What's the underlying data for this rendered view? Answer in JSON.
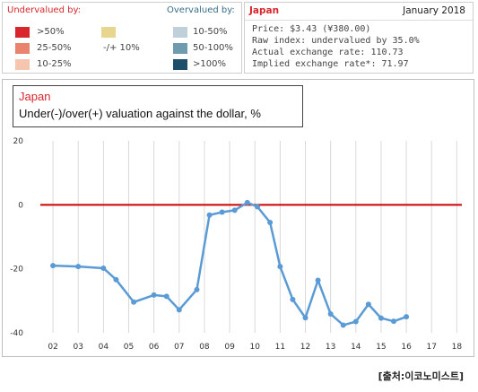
{
  "legend": {
    "under_header": "Undervalued by:",
    "over_header": "Overvalued by:",
    "mid_label": "-/+ 10%",
    "mid_color": "#e8d68f",
    "under_items": [
      {
        "label": ">50%",
        "color": "#d8262c"
      },
      {
        "label": "25-50%",
        "color": "#e9836e"
      },
      {
        "label": "10-25%",
        "color": "#f6c5ae"
      }
    ],
    "over_items": [
      {
        "label": "10-50%",
        "color": "#bfd0db"
      },
      {
        "label": "50-100%",
        "color": "#6e9cae"
      },
      {
        "label": ">100%",
        "color": "#1f4e6b"
      }
    ]
  },
  "info": {
    "country": "Japan",
    "date": "January 2018",
    "price": "Price: $3.43 (¥380.00)",
    "raw_index": "Raw index: undervalued by 35.0%",
    "actual_rate": "Actual exchange rate: 110.73",
    "implied_rate": "Implied exchange rate*: 71.97"
  },
  "source": "[출처:이코노미스트]",
  "chart_data": {
    "type": "line",
    "title": "Japan",
    "subtitle": "Under(-)/over(+) valuation against the dollar, %",
    "ylim": [
      -40,
      20
    ],
    "yticks": [
      20,
      0,
      -20,
      -40
    ],
    "xlim": [
      2001.5,
      2018.2
    ],
    "xticks": [
      {
        "label": "02",
        "x": 2002.0
      },
      {
        "label": "03",
        "x": 2003.0
      },
      {
        "label": "04",
        "x": 2004.0
      },
      {
        "label": "05",
        "x": 2005.0
      },
      {
        "label": "06",
        "x": 2006.0
      },
      {
        "label": "07",
        "x": 2007.0
      },
      {
        "label": "08",
        "x": 2008.0
      },
      {
        "label": "09",
        "x": 2009.0
      },
      {
        "label": "10",
        "x": 2010.0
      },
      {
        "label": "11",
        "x": 2011.0
      },
      {
        "label": "12",
        "x": 2012.0
      },
      {
        "label": "13",
        "x": 2013.0
      },
      {
        "label": "14",
        "x": 2014.0
      },
      {
        "label": "15",
        "x": 2015.0
      },
      {
        "label": "16",
        "x": 2016.0
      },
      {
        "label": "17",
        "x": 2017.0
      },
      {
        "label": "18",
        "x": 2018.0
      }
    ],
    "reference_line": {
      "y": 0,
      "color": "#cc0000"
    },
    "grid": "vertical",
    "series_color": "#5b9bd5",
    "series": [
      {
        "points": [
          [
            2002.0,
            -19.0
          ],
          [
            2003.0,
            -19.3
          ],
          [
            2004.0,
            -19.8
          ],
          [
            2004.5,
            -23.4
          ],
          [
            2005.2,
            -30.4
          ],
          [
            2006.0,
            -28.2
          ],
          [
            2006.5,
            -28.6
          ],
          [
            2007.0,
            -32.8
          ],
          [
            2007.7,
            -26.5
          ],
          [
            2008.2,
            -3.2
          ],
          [
            2008.7,
            -2.3
          ],
          [
            2009.2,
            -1.7
          ],
          [
            2009.7,
            0.7
          ],
          [
            2010.1,
            -0.6
          ],
          [
            2010.6,
            -5.5
          ],
          [
            2011.0,
            -19.3
          ],
          [
            2011.5,
            -29.6
          ],
          [
            2012.0,
            -35.3
          ],
          [
            2012.5,
            -23.6
          ],
          [
            2013.0,
            -34.1
          ],
          [
            2013.5,
            -37.6
          ],
          [
            2014.0,
            -36.5
          ],
          [
            2014.5,
            -31.1
          ],
          [
            2015.0,
            -35.4
          ],
          [
            2015.5,
            -36.4
          ],
          [
            2016.0,
            -35.0
          ]
        ]
      }
    ]
  }
}
